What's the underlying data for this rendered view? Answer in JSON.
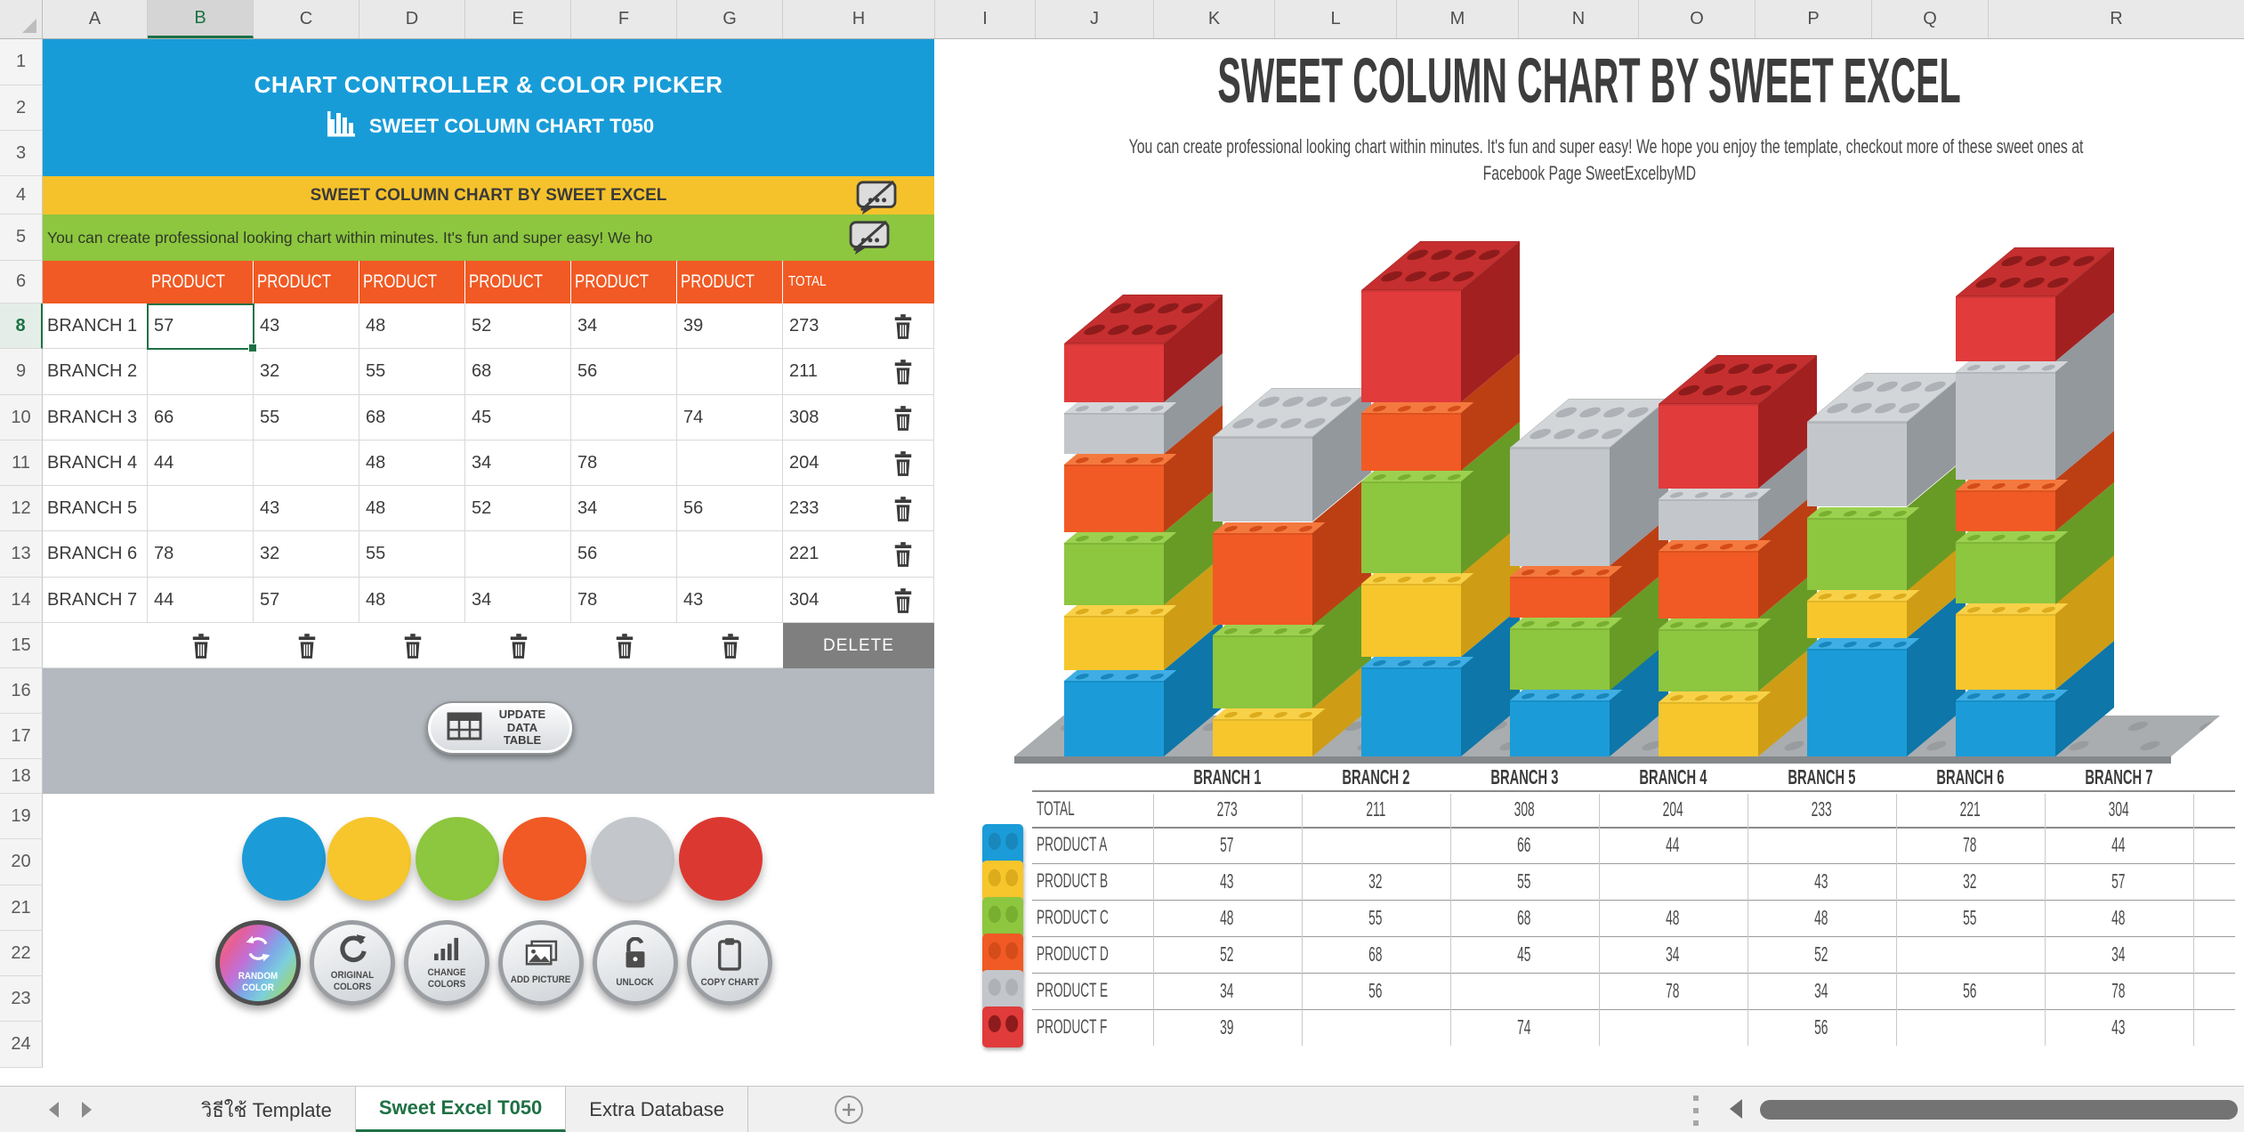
{
  "spreadsheet": {
    "columns": [
      "A",
      "B",
      "C",
      "D",
      "E",
      "F",
      "G",
      "H",
      "I",
      "J",
      "K",
      "L",
      "M",
      "N",
      "O",
      "P",
      "Q",
      "R"
    ],
    "selected_column": "B",
    "rows": [
      "1",
      "2",
      "3",
      "4",
      "5",
      "6",
      "8",
      "9",
      "10",
      "11",
      "12",
      "13",
      "14",
      "15",
      "16",
      "17",
      "18",
      "19",
      "20",
      "21",
      "22",
      "23",
      "24"
    ],
    "selected_row": "8"
  },
  "panel": {
    "title": "CHART CONTROLLER & COLOR PICKER",
    "subtitle": "SWEET COLUMN CHART T050",
    "banner": "SWEET COLUMN CHART BY SWEET EXCEL",
    "description": "You can create professional looking chart within minutes. It's fun and super easy! We ho",
    "table": {
      "product_header": "PRODUCT",
      "total_header": "TOTAL",
      "rows": [
        {
          "label": "BRANCH 1",
          "values": [
            "57",
            "43",
            "48",
            "52",
            "34",
            "39"
          ],
          "total": "273"
        },
        {
          "label": "BRANCH 2",
          "values": [
            "",
            "32",
            "55",
            "68",
            "56",
            ""
          ],
          "total": "211"
        },
        {
          "label": "BRANCH 3",
          "values": [
            "66",
            "55",
            "68",
            "45",
            "",
            "74"
          ],
          "total": "308"
        },
        {
          "label": "BRANCH 4",
          "values": [
            "44",
            "",
            "48",
            "34",
            "78",
            ""
          ],
          "total": "204"
        },
        {
          "label": "BRANCH 5",
          "values": [
            "",
            "43",
            "48",
            "52",
            "34",
            "56"
          ],
          "total": "233"
        },
        {
          "label": "BRANCH 6",
          "values": [
            "78",
            "32",
            "55",
            "",
            "56",
            ""
          ],
          "total": "221"
        },
        {
          "label": "BRANCH 7",
          "values": [
            "44",
            "57",
            "48",
            "34",
            "78",
            "43"
          ],
          "total": "304"
        }
      ],
      "delete_label": "DELETE"
    },
    "update_button_label": "UPDATE DATA TABLE",
    "swatches": [
      {
        "name": "blue",
        "color": "#1B9CD8"
      },
      {
        "name": "yellow",
        "color": "#F6C62C"
      },
      {
        "name": "green",
        "color": "#8DC63F"
      },
      {
        "name": "orange",
        "color": "#F15A24"
      },
      {
        "name": "gray",
        "color": "#C3C7CB"
      },
      {
        "name": "red",
        "color": "#DC3832"
      }
    ],
    "buttons": [
      {
        "label": "RANDOM COLOR"
      },
      {
        "label": "ORIGINAL COLORS"
      },
      {
        "label": "CHANGE COLORS"
      },
      {
        "label": "ADD PICTURE"
      },
      {
        "label": "UNLOCK"
      },
      {
        "label": "COPY CHART"
      }
    ]
  },
  "chart": {
    "title": "SWEET COLUMN CHART BY SWEET EXCEL",
    "subtitle_line1": "You can create professional looking chart within minutes. It's fun and super easy! We hope you enjoy the template, checkout more of these sweet ones at",
    "subtitle_line2": "Facebook Page SweetExcelbyMD"
  },
  "chart_data": {
    "type": "bar",
    "stacked": true,
    "title": "SWEET COLUMN CHART BY SWEET EXCEL",
    "categories": [
      "BRANCH 1",
      "BRANCH 2",
      "BRANCH 3",
      "BRANCH 4",
      "BRANCH 5",
      "BRANCH 6",
      "BRANCH 7"
    ],
    "series": [
      {
        "name": "PRODUCT A",
        "values": [
          57,
          null,
          66,
          44,
          null,
          78,
          44
        ],
        "color": "#1B9CD8",
        "side": "#0E76A8",
        "top": "#3FAEE4",
        "stud": "#1787BC"
      },
      {
        "name": "PRODUCT B",
        "values": [
          43,
          32,
          55,
          null,
          43,
          32,
          57
        ],
        "color": "#F6C62C",
        "side": "#CE9D15",
        "top": "#F8D149",
        "stud": "#DCAC1C"
      },
      {
        "name": "PRODUCT C",
        "values": [
          48,
          55,
          68,
          48,
          48,
          55,
          48
        ],
        "color": "#8DC63F",
        "side": "#689B26",
        "top": "#9CD14F",
        "stud": "#79AF30"
      },
      {
        "name": "PRODUCT D",
        "values": [
          52,
          68,
          45,
          34,
          52,
          null,
          34
        ],
        "color": "#F15A24",
        "side": "#BC3F14",
        "top": "#F4793F",
        "stud": "#D44C19"
      },
      {
        "name": "PRODUCT E",
        "values": [
          34,
          56,
          null,
          78,
          34,
          56,
          78
        ],
        "color": "#C3C7CB",
        "side": "#93989D",
        "top": "#D3D6D9",
        "stud": "#AEB2B6"
      },
      {
        "name": "PRODUCT F",
        "values": [
          39,
          null,
          74,
          null,
          56,
          null,
          43
        ],
        "color": "#E13B3B",
        "side": "#A32020",
        "top": "#C62F2F",
        "stud": "#8E1B1B"
      }
    ],
    "totals": [
      273,
      211,
      308,
      204,
      233,
      221,
      304
    ],
    "total_label": "TOTAL",
    "ylim": [
      0,
      308
    ],
    "grid": false,
    "legend_position": "table-left-icons"
  },
  "tabs": {
    "items": [
      {
        "label": "วิธีใช้ Template",
        "active": false
      },
      {
        "label": "Sweet Excel T050",
        "active": true
      },
      {
        "label": "Extra Database",
        "active": false
      }
    ]
  },
  "colors": {
    "band_blue": "#189CD8",
    "band_yellow": "#F5C22B",
    "band_green": "#8DC63F",
    "band_orange": "#F15A24",
    "accent_green": "#1E7145",
    "gray_band": "#B3B9BF",
    "delete_gray": "#7F7F7F",
    "baseplate": "#A9ADB0",
    "baseplate_stud": "#989C9F",
    "baseplate_edge": "#84888B"
  }
}
